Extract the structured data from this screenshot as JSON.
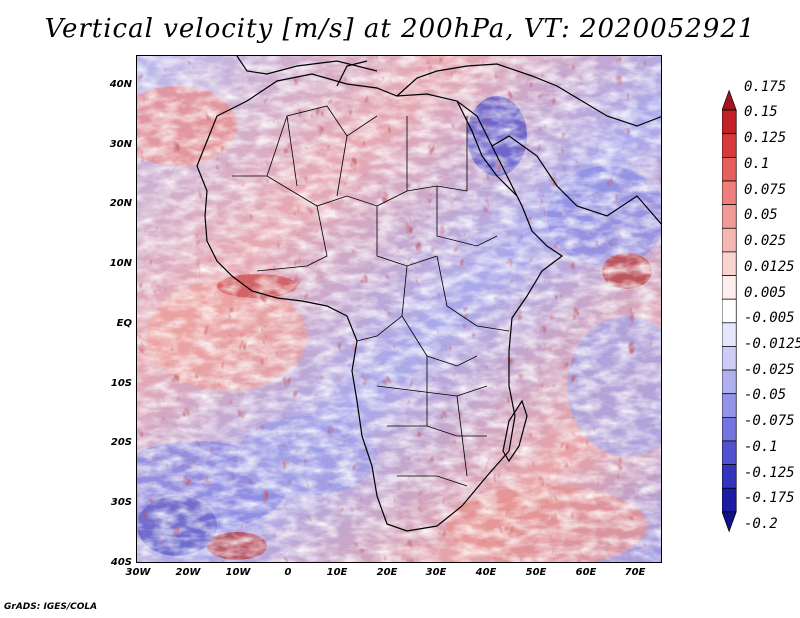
{
  "title": "Vertical velocity [m/s] at 200hPa, VT: 2020052921",
  "footer": "GrADS: IGES/COLA",
  "lat_labels": [
    "40N",
    "30N",
    "20N",
    "10N",
    "EQ",
    "10S",
    "20S",
    "30S",
    "40S"
  ],
  "lon_labels": [
    "30W",
    "20W",
    "10W",
    "0",
    "10E",
    "20E",
    "30E",
    "40E",
    "50E",
    "60E",
    "70E"
  ],
  "colorbar": {
    "labels": [
      "0.175",
      "0.15",
      "0.125",
      "0.1",
      "0.075",
      "0.05",
      "0.025",
      "0.0125",
      "0.005",
      "-0.005",
      "-0.0125",
      "-0.025",
      "-0.05",
      "-0.075",
      "-0.1",
      "-0.125",
      "-0.175",
      "-0.2"
    ],
    "colors": [
      "#a5141c",
      "#c22127",
      "#d63a3c",
      "#e65f5d",
      "#ee7f7c",
      "#f29a97",
      "#f6b7b3",
      "#f9d3d0",
      "#fdeeed",
      "#ffffff",
      "#e6e6fb",
      "#ccccf4",
      "#b0b0ef",
      "#9393e8",
      "#7474de",
      "#5252d0",
      "#3434bd",
      "#1c1ca3",
      "#121288"
    ]
  },
  "colors": {
    "ocean_pos": "#ee8c86",
    "ocean_neg": "#8f8fe6",
    "land": "#c5c5f1",
    "coast": "#000000"
  }
}
